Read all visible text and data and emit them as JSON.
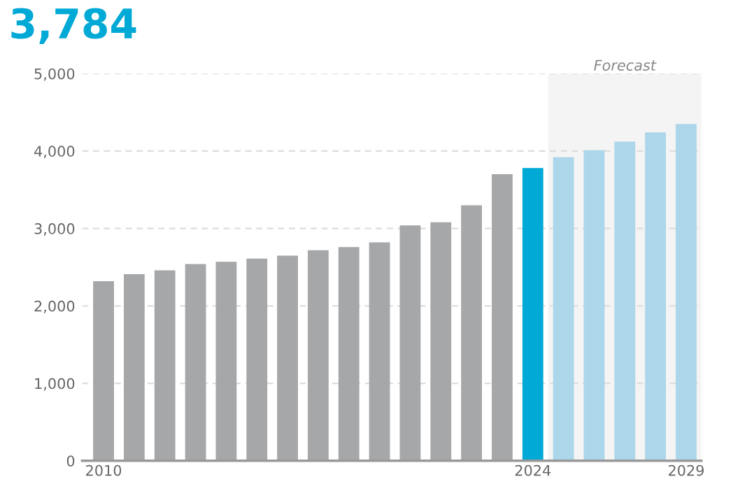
{
  "chart_data": {
    "type": "bar",
    "title": "3,784",
    "categories": [
      "2010",
      null,
      null,
      null,
      null,
      null,
      null,
      null,
      null,
      null,
      null,
      null,
      null,
      null,
      "2024",
      null,
      null,
      null,
      null,
      "2029"
    ],
    "values": [
      2320,
      2410,
      2460,
      2540,
      2570,
      2610,
      2650,
      2720,
      2760,
      2820,
      3040,
      3080,
      3300,
      3700,
      3780,
      3920,
      4010,
      4120,
      4240,
      4350
    ],
    "colors": [
      "#a6a7a9",
      "#a6a7a9",
      "#a6a7a9",
      "#a6a7a9",
      "#a6a7a9",
      "#a6a7a9",
      "#a6a7a9",
      "#a6a7a9",
      "#a6a7a9",
      "#a6a7a9",
      "#a6a7a9",
      "#a6a7a9",
      "#a6a7a9",
      "#a6a7a9",
      "#00a9d6",
      "#acd6ea",
      "#acd6ea",
      "#acd6ea",
      "#acd6ea",
      "#acd6ea"
    ],
    "ylim": [
      0,
      5000
    ],
    "yticks": [
      {
        "value": 0,
        "label": "0"
      },
      {
        "value": 1000,
        "label": "1,000"
      },
      {
        "value": 2000,
        "label": "2,000"
      },
      {
        "value": 3000,
        "label": "3,000"
      },
      {
        "value": 4000,
        "label": "4,000"
      },
      {
        "value": 5000,
        "label": "5,000"
      }
    ],
    "grid": "y",
    "annotations": [
      "Forecast"
    ]
  }
}
